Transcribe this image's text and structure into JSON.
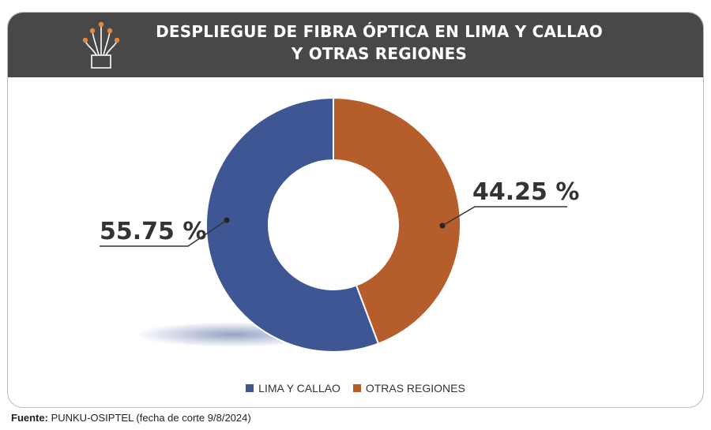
{
  "title_line1": "DESPLIEGUE DE FIBRA ÓPTICA EN LIMA Y CALLAO",
  "title_line2": "Y OTRAS REGIONES",
  "icon": "fiber-optic-icon",
  "chart_data": {
    "type": "pie",
    "donut": true,
    "categories": [
      "LIMA Y CALLAO",
      "OTRAS REGIONES"
    ],
    "values": [
      55.75,
      44.25
    ],
    "labels": [
      "55.75 %",
      "44.25 %"
    ],
    "colors": [
      "#3f5694",
      "#b55e2c"
    ],
    "legend_position": "bottom"
  },
  "source": {
    "label": "Fuente:",
    "text": " PUNKU-OSIPTEL (fecha de corte 9/8/2024)"
  }
}
